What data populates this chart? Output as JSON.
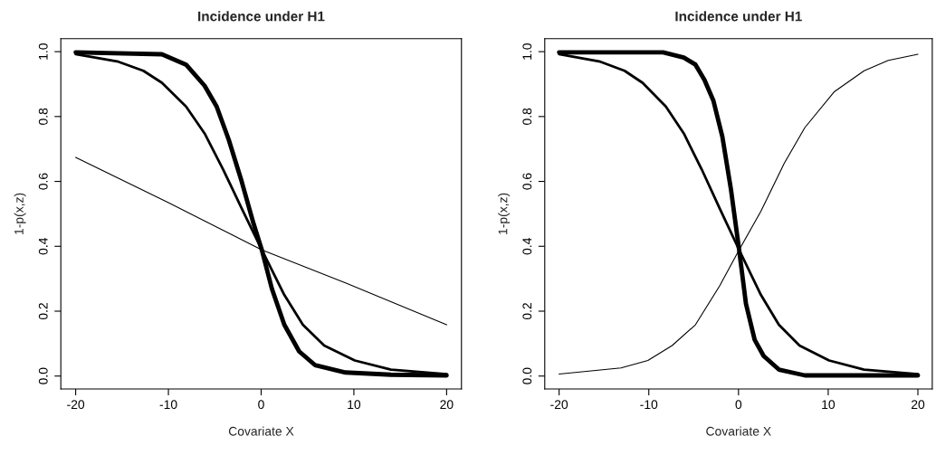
{
  "chart_data": [
    {
      "type": "line",
      "title": "Incidence under H1",
      "xlabel": "Covariate X",
      "ylabel": "1-p(x,z)",
      "xlim": [
        -21.6,
        21.6
      ],
      "ylim": [
        -0.04,
        1.04
      ],
      "xticks": [
        -20,
        -10,
        0,
        10,
        20
      ],
      "yticks": [
        {
          "value": 0,
          "label": "0.0"
        },
        {
          "value": 0.2,
          "label": "0.2"
        },
        {
          "value": 0.4,
          "label": "0.4"
        },
        {
          "value": 0.6,
          "label": "0.6"
        },
        {
          "value": 0.8,
          "label": "0.8"
        },
        {
          "value": 1,
          "label": "1.0"
        }
      ],
      "grid": false,
      "line_style": "solid",
      "series": [
        {
          "color": "#000000",
          "x": [
            -20,
            -10.1,
            0.07,
            9.1,
            20
          ],
          "values": [
            0.674,
            0.536,
            0.389,
            0.287,
            0.158
          ]
        },
        {
          "color": "#000000",
          "x": [
            -20,
            -15.4,
            -12.7,
            -10.7,
            -8.1,
            -6.1,
            -4.1,
            -2.1,
            0.07,
            2.5,
            4.5,
            6.8,
            10.1,
            14,
            20
          ],
          "values": [
            0.992,
            0.969,
            0.941,
            0.904,
            0.831,
            0.748,
            0.637,
            0.517,
            0.389,
            0.25,
            0.158,
            0.094,
            0.048,
            0.02,
            0.006
          ]
        },
        {
          "color": "#000000",
          "x": [
            -20,
            -10.7,
            -8.1,
            -6.1,
            -4.8,
            -3.5,
            -2.1,
            -0.83,
            0.07,
            1.16,
            2.5,
            4.1,
            5.8,
            9.1,
            14,
            20
          ],
          "values": [
            0.998,
            0.992,
            0.96,
            0.895,
            0.831,
            0.729,
            0.6,
            0.471,
            0.389,
            0.269,
            0.158,
            0.076,
            0.034,
            0.011,
            0.004,
            0.002
          ]
        }
      ]
    },
    {
      "type": "line",
      "title": "Incidence under H1",
      "xlabel": "Covariate X",
      "ylabel": "1-p(x,z)",
      "xlim": [
        -21.6,
        21.6
      ],
      "ylim": [
        -0.04,
        1.04
      ],
      "xticks": [
        -20,
        -10,
        0,
        10,
        20
      ],
      "yticks": [
        {
          "value": 0,
          "label": "0.0"
        },
        {
          "value": 0.2,
          "label": "0.2"
        },
        {
          "value": 0.4,
          "label": "0.4"
        },
        {
          "value": 0.6,
          "label": "0.6"
        },
        {
          "value": 0.8,
          "label": "0.8"
        },
        {
          "value": 1,
          "label": "1.0"
        }
      ],
      "grid": false,
      "line_style": "solid",
      "series": [
        {
          "color": "#000000",
          "x": [
            -20,
            -13.1,
            -10.1,
            -7.4,
            -4.8,
            -2.1,
            0.07,
            2.5,
            5.1,
            7.4,
            10.7,
            14,
            16.7,
            20
          ],
          "values": [
            0.006,
            0.025,
            0.048,
            0.094,
            0.158,
            0.278,
            0.389,
            0.508,
            0.656,
            0.766,
            0.877,
            0.941,
            0.973,
            0.992
          ]
        },
        {
          "color": "#000000",
          "x": [
            -20,
            -15.4,
            -12.7,
            -10.7,
            -8.1,
            -6.1,
            -4.1,
            -2.1,
            0.07,
            2.5,
            4.5,
            6.8,
            10.1,
            14,
            20
          ],
          "values": [
            0.992,
            0.969,
            0.941,
            0.904,
            0.831,
            0.748,
            0.637,
            0.517,
            0.389,
            0.25,
            0.158,
            0.094,
            0.048,
            0.02,
            0.006
          ]
        },
        {
          "color": "#000000",
          "x": [
            -20,
            -8.4,
            -6.1,
            -4.8,
            -3.8,
            -2.8,
            -1.8,
            -0.83,
            0.07,
            0.83,
            1.8,
            2.8,
            4.5,
            7.4,
            20
          ],
          "values": [
            0.998,
            0.998,
            0.982,
            0.96,
            0.913,
            0.849,
            0.738,
            0.573,
            0.389,
            0.223,
            0.112,
            0.062,
            0.02,
            0.002,
            0.002
          ]
        }
      ]
    }
  ]
}
